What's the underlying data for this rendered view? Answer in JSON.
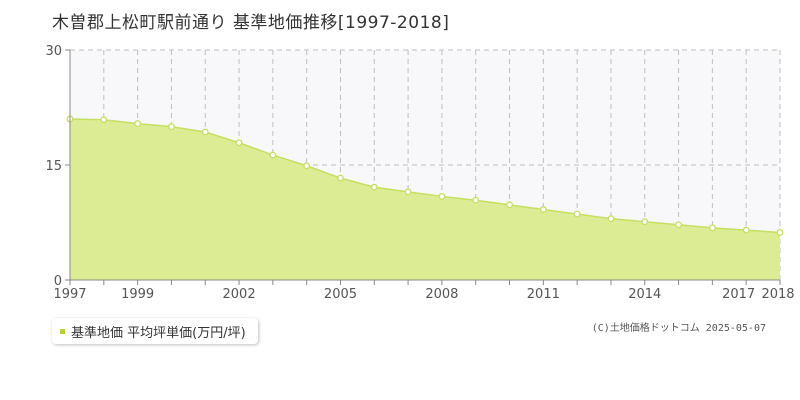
{
  "title": "木曽郡上松町駅前通り 基準地価推移[1997-2018]",
  "colors": {
    "area_fill": "#dcec94",
    "line": "#c5df62",
    "marker_fill": "#ffffff",
    "plot_background": "#f8f7fa",
    "grid": "#bfbfbf",
    "legend_marker": "#b2d33b"
  },
  "chart_data": {
    "type": "area",
    "title": "木曽郡上松町駅前通り 基準地価推移[1997-2018]",
    "xlabel": "",
    "ylabel": "",
    "x": [
      1997,
      1998,
      1999,
      2000,
      2001,
      2002,
      2003,
      2004,
      2005,
      2006,
      2007,
      2008,
      2009,
      2010,
      2011,
      2012,
      2013,
      2014,
      2015,
      2016,
      2017,
      2018
    ],
    "xlim": [
      1997,
      2018
    ],
    "x_tick_labels": [
      "1997",
      "1999",
      "2002",
      "2005",
      "2008",
      "2011",
      "2014",
      "2017",
      "2018"
    ],
    "ylim": [
      0,
      30
    ],
    "y_ticks": [
      0,
      15,
      30
    ],
    "grid": true,
    "legend": "bottom-left",
    "series": [
      {
        "name": "基準地価 平均坪単価(万円/坪)",
        "values": [
          21.0,
          20.9,
          20.4,
          20.0,
          19.3,
          17.9,
          16.3,
          14.9,
          13.3,
          12.1,
          11.5,
          10.9,
          10.4,
          9.8,
          9.2,
          8.6,
          8.0,
          7.6,
          7.2,
          6.8,
          6.5,
          6.2
        ]
      }
    ]
  },
  "legend": {
    "label": "基準地価 平均坪単価(万円/坪)"
  },
  "copyright": "(C)土地価格ドットコム 2025-05-07"
}
